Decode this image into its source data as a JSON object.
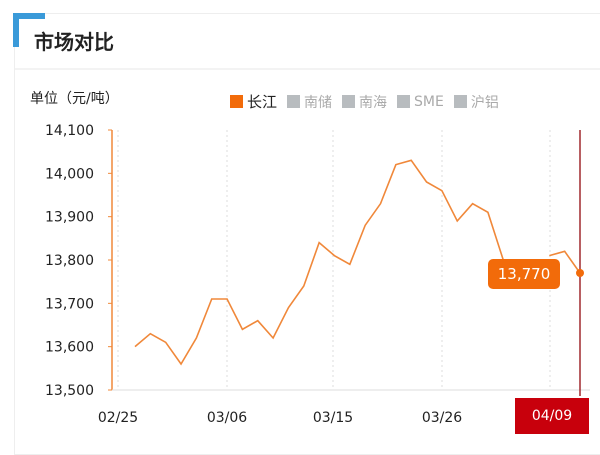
{
  "header": {
    "title": "市场对比"
  },
  "chart_data": {
    "type": "line",
    "ylabel": "单位（元/吨）",
    "ylim": [
      13500,
      14100
    ],
    "yticks": [
      "14,100",
      "14,000",
      "13,900",
      "13,800",
      "13,700",
      "13,600",
      "13,500"
    ],
    "xticks": [
      "02/25",
      "03/06",
      "03/15",
      "03/26",
      "04/09"
    ],
    "grid": "vertical dotted",
    "legend_position": "top",
    "legend": [
      {
        "name": "长江",
        "active": true,
        "color": "#f26b0a"
      },
      {
        "name": "南储",
        "active": false
      },
      {
        "name": "南海",
        "active": false
      },
      {
        "name": "SME",
        "active": false
      },
      {
        "name": "沪铝",
        "active": false
      }
    ],
    "series": [
      {
        "name": "长江",
        "color": "#f0883a",
        "values": [
          13600,
          13630,
          13610,
          13560,
          13620,
          13710,
          13710,
          13640,
          13660,
          13620,
          13690,
          13740,
          13840,
          13810,
          13790,
          13880,
          13930,
          14020,
          14030,
          13980,
          13960,
          13890,
          13930,
          13910,
          13800,
          null,
          null,
          13810,
          13820,
          13770
        ]
      }
    ],
    "tooltip": {
      "value": "13,770",
      "date": "04/09"
    }
  }
}
